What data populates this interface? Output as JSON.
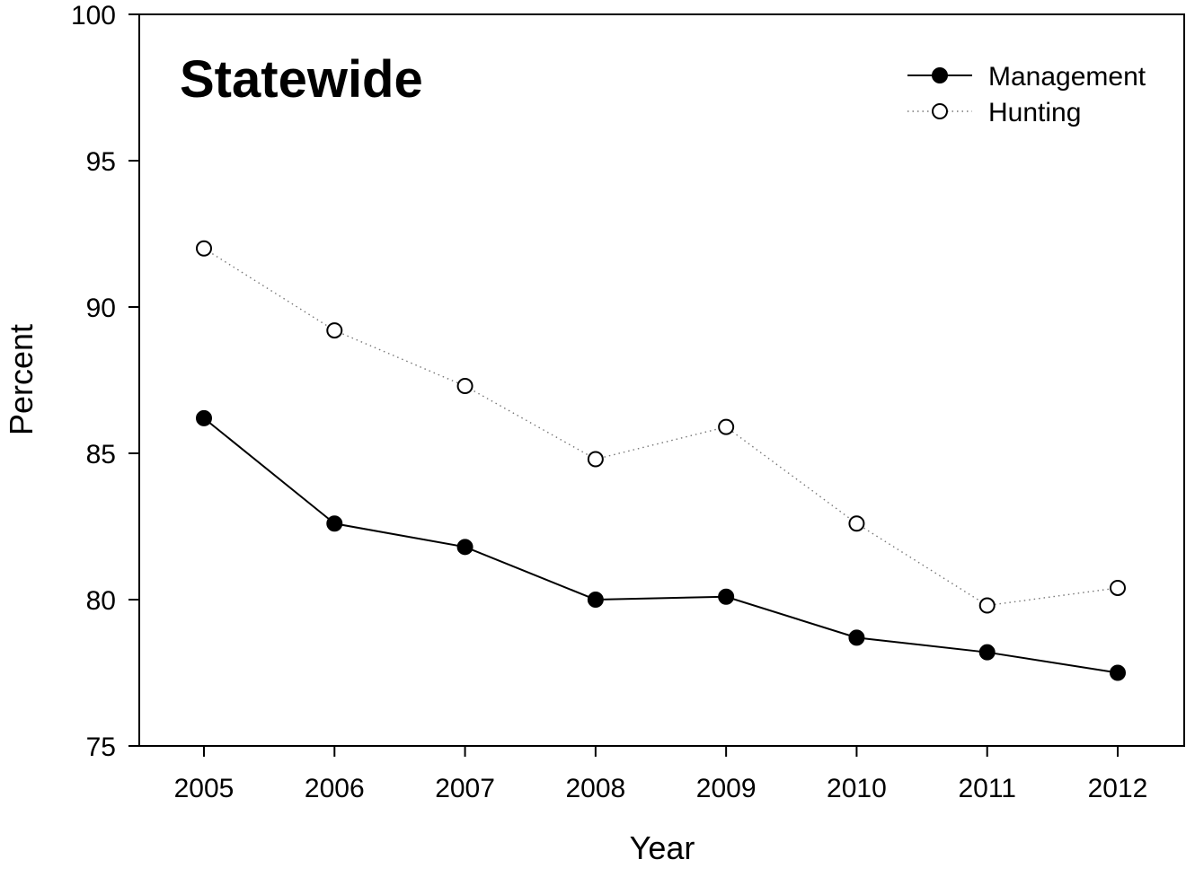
{
  "chart_data": {
    "type": "line",
    "title": "Statewide",
    "xlabel": "Year",
    "ylabel": "Percent",
    "x": [
      2005,
      2006,
      2007,
      2008,
      2009,
      2010,
      2011,
      2012
    ],
    "x_tick_labels": [
      "2005",
      "2006",
      "2007",
      "2008",
      "2009",
      "2010",
      "2011",
      "2012"
    ],
    "ylim": [
      75,
      100
    ],
    "y_ticks": [
      75,
      80,
      85,
      90,
      95,
      100
    ],
    "y_tick_labels": [
      "75",
      "80",
      "85",
      "90",
      "95",
      "100"
    ],
    "grid": false,
    "legend_position": "top-right",
    "series": [
      {
        "name": "Management",
        "marker": "filled-circle",
        "line_style": "solid",
        "color": "#000000",
        "values": [
          86.2,
          82.6,
          81.8,
          80.0,
          80.1,
          78.7,
          78.2,
          77.5
        ]
      },
      {
        "name": "Hunting",
        "marker": "open-circle",
        "line_style": "dotted",
        "color": "#000000",
        "values": [
          92.0,
          89.2,
          87.3,
          84.8,
          85.9,
          82.6,
          79.8,
          80.4
        ]
      }
    ]
  }
}
